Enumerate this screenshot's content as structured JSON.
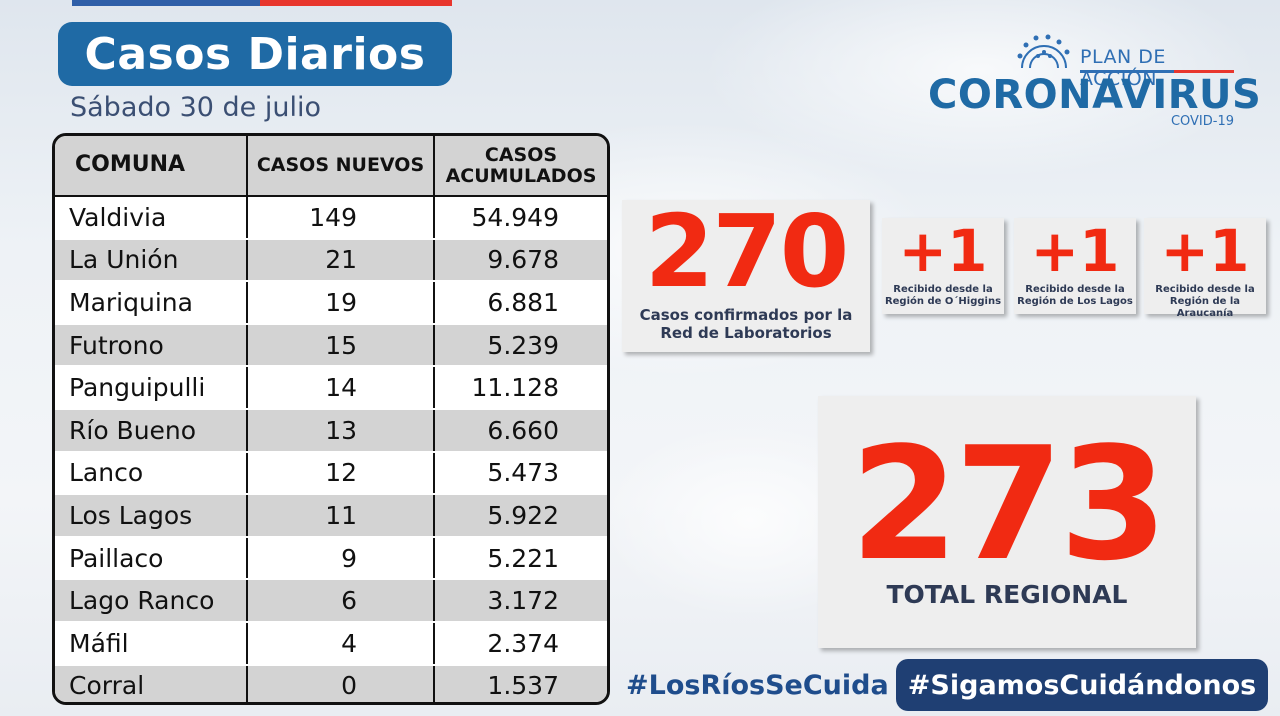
{
  "header": {
    "title": "Casos Diarios",
    "date": "Sábado 30 de julio"
  },
  "logo": {
    "line1": "PLAN DE ACCIÓN",
    "line2": "CORONAVIRUS",
    "line3": "COVID-19"
  },
  "table": {
    "headers": [
      "COMUNA",
      "CASOS NUEVOS",
      "CASOS ACUMULADOS"
    ],
    "rows": [
      {
        "comuna": "Valdivia",
        "nuevos": "149",
        "acumulados": "54.949"
      },
      {
        "comuna": "La Unión",
        "nuevos": "21",
        "acumulados": "9.678"
      },
      {
        "comuna": "Mariquina",
        "nuevos": "19",
        "acumulados": "6.881"
      },
      {
        "comuna": "Futrono",
        "nuevos": "15",
        "acumulados": "5.239"
      },
      {
        "comuna": "Panguipulli",
        "nuevos": "14",
        "acumulados": "11.128"
      },
      {
        "comuna": "Río Bueno",
        "nuevos": "13",
        "acumulados": "6.660"
      },
      {
        "comuna": "Lanco",
        "nuevos": "12",
        "acumulados": "5.473"
      },
      {
        "comuna": "Los Lagos",
        "nuevos": "11",
        "acumulados": "5.922"
      },
      {
        "comuna": "Paillaco",
        "nuevos": "9",
        "acumulados": "5.221"
      },
      {
        "comuna": "Lago Ranco",
        "nuevos": "6",
        "acumulados": "3.172"
      },
      {
        "comuna": "Máfil",
        "nuevos": "4",
        "acumulados": "2.374"
      },
      {
        "comuna": "Corral",
        "nuevos": "0",
        "acumulados": "1.537"
      }
    ]
  },
  "lab": {
    "value": "270",
    "label_line1": "Casos confirmados por la",
    "label_line2": "Red de Laboratorios"
  },
  "received": [
    {
      "value": "+1",
      "line1": "Recibido desde la",
      "line2": "Región de O´Higgins"
    },
    {
      "value": "+1",
      "line1": "Recibido desde la",
      "line2": "Región de Los Lagos"
    },
    {
      "value": "+1",
      "line1": "Recibido desde la",
      "line2": "Región de la Araucanía"
    }
  ],
  "total": {
    "value": "273",
    "label": "TOTAL REGIONAL"
  },
  "hashtags": {
    "first": "#LosRíosSeCuida",
    "second": "#SigamosCuidándonos"
  },
  "colors": {
    "accent_red": "#f12a12",
    "brand_blue": "#1f6aa5",
    "navy": "#1f3f73"
  }
}
